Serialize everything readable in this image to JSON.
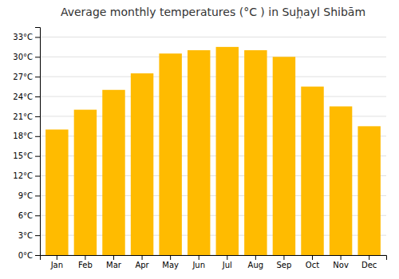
{
  "chart_data": {
    "type": "bar",
    "title": "Average monthly temperatures (°C ) in Suḩ̣ayl Shibām",
    "categories": [
      "Jan",
      "Feb",
      "Mar",
      "Apr",
      "May",
      "Jun",
      "Jul",
      "Aug",
      "Sep",
      "Oct",
      "Nov",
      "Dec"
    ],
    "values": [
      19,
      22,
      25,
      27.5,
      30.5,
      31,
      31.5,
      31,
      30,
      25.5,
      22.5,
      19.5
    ],
    "color": "#FFBB00",
    "ylim": [
      0,
      34.5
    ],
    "yticks": [
      {
        "value": 0,
        "label": "0°C"
      },
      {
        "value": 3,
        "label": "3°C"
      },
      {
        "value": 6,
        "label": "6°C"
      },
      {
        "value": 9,
        "label": "9°C"
      },
      {
        "value": 12,
        "label": "12°C"
      },
      {
        "value": 15,
        "label": "15°C"
      },
      {
        "value": 18,
        "label": "18°C"
      },
      {
        "value": 21,
        "label": "21°C"
      },
      {
        "value": 24,
        "label": "24°C"
      },
      {
        "value": 27,
        "label": "27°C"
      },
      {
        "value": 30,
        "label": "30°C"
      },
      {
        "value": 33,
        "label": "33°C"
      }
    ],
    "grid": true
  }
}
